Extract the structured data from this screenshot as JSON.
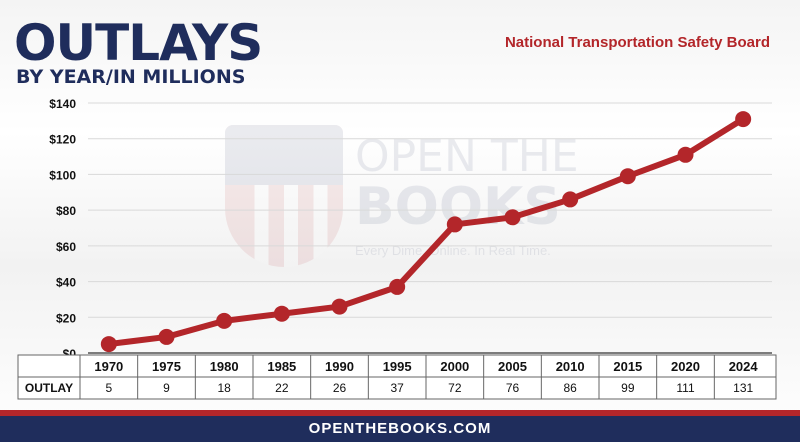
{
  "header": {
    "title": "OUTLAYS",
    "subtitle": "BY YEAR/IN MILLIONS",
    "agency": "National Transportation Safety Board"
  },
  "watermark": {
    "line1": "OPEN THE",
    "line2": "BOOKS",
    "tagline": "Every Dime. Online. In Real Time."
  },
  "footer": {
    "site": "OPENTHEBOOKS.COM"
  },
  "colors": {
    "navy": "#1f2d5c",
    "red": "#b3262a"
  },
  "chart_data": {
    "type": "line",
    "title": "OUTLAYS",
    "subtitle": "BY YEAR/IN MILLIONS",
    "xlabel": "",
    "ylabel": "",
    "categories": [
      "1970",
      "1975",
      "1980",
      "1985",
      "1990",
      "1995",
      "2000",
      "2005",
      "2010",
      "2015",
      "2020",
      "2024"
    ],
    "series": [
      {
        "name": "OUTLAY",
        "values": [
          5,
          9,
          18,
          22,
          26,
          37,
          72,
          76,
          86,
          99,
          111,
          131
        ]
      }
    ],
    "ylim": [
      0,
      140
    ],
    "yticks": [
      0,
      20,
      40,
      60,
      80,
      100,
      120,
      140
    ],
    "ytick_labels": [
      "$0",
      "$20",
      "$40",
      "$60",
      "$80",
      "$100",
      "$120",
      "$140"
    ],
    "table_row_label": "OUTLAY",
    "grid": true,
    "line_color": "#b3262a"
  }
}
